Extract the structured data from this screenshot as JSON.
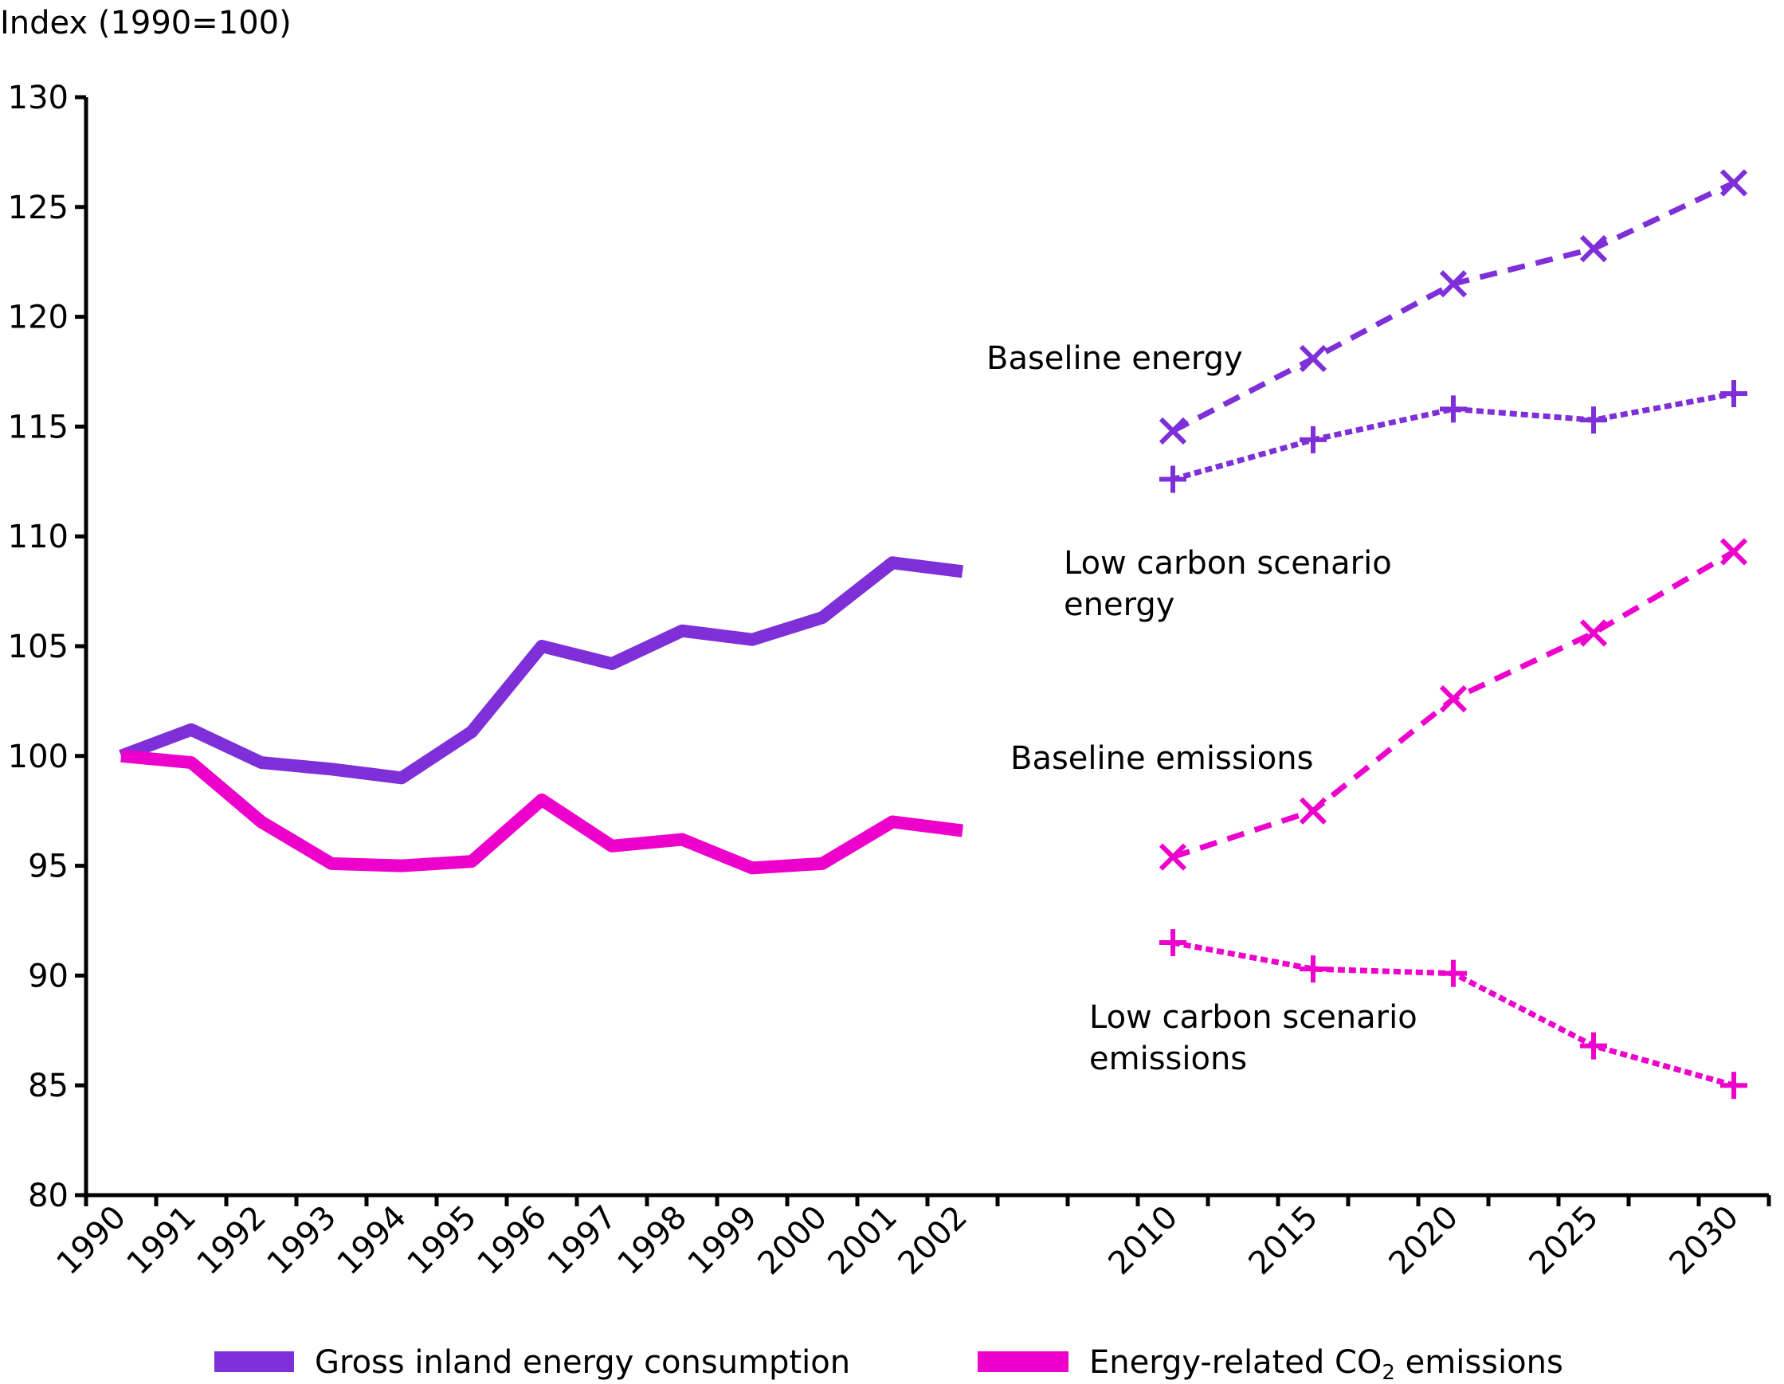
{
  "chart_data": {
    "type": "line",
    "title": "",
    "ylabel": "Index (1990=100)",
    "xlabel": "",
    "ylim": [
      80,
      130
    ],
    "yticks": [
      80,
      85,
      90,
      95,
      100,
      105,
      110,
      115,
      120,
      125,
      130
    ],
    "grid": false,
    "categories": [
      "1990",
      "1991",
      "1992",
      "1993",
      "1994",
      "1995",
      "1996",
      "1997",
      "1998",
      "1999",
      "2000",
      "2001",
      "2002",
      "",
      "",
      "2010",
      "",
      "2015",
      "",
      "2020",
      "",
      "2025",
      "",
      "2030"
    ],
    "series": [
      {
        "name": "Gross inland energy consumption",
        "color": "#7F2FD8",
        "style": "solid",
        "marker": "none",
        "x": [
          "1990",
          "1991",
          "1992",
          "1993",
          "1994",
          "1995",
          "1996",
          "1997",
          "1998",
          "1999",
          "2000",
          "2001",
          "2002"
        ],
        "values": [
          100.0,
          101.2,
          99.7,
          99.4,
          99.0,
          101.1,
          105.0,
          104.2,
          105.7,
          105.3,
          106.3,
          108.8,
          108.4
        ]
      },
      {
        "name": "Energy-related CO2 emissions",
        "color": "#EE00CC",
        "style": "solid",
        "marker": "none",
        "x": [
          "1990",
          "1991",
          "1992",
          "1993",
          "1994",
          "1995",
          "1996",
          "1997",
          "1998",
          "1999",
          "2000",
          "2001",
          "2002"
        ],
        "values": [
          100.0,
          99.7,
          97.0,
          95.1,
          95.0,
          95.2,
          98.0,
          95.9,
          96.2,
          94.9,
          95.1,
          97.0,
          96.6
        ]
      },
      {
        "name": "Baseline energy",
        "color": "#7F2FD8",
        "style": "dashed",
        "marker": "x",
        "x": [
          "2010",
          "2015",
          "2020",
          "2025",
          "2030"
        ],
        "values": [
          114.8,
          118.1,
          121.5,
          123.1,
          126.1
        ]
      },
      {
        "name": "Low carbon scenario energy",
        "color": "#7F2FD8",
        "style": "dotted",
        "marker": "+",
        "x": [
          "2010",
          "2015",
          "2020",
          "2025",
          "2030"
        ],
        "values": [
          112.6,
          114.4,
          115.8,
          115.3,
          116.5
        ]
      },
      {
        "name": "Baseline emissions",
        "color": "#EE00CC",
        "style": "dashed",
        "marker": "x",
        "x": [
          "2010",
          "2015",
          "2020",
          "2025",
          "2030"
        ],
        "values": [
          95.4,
          97.5,
          102.6,
          105.6,
          109.3
        ]
      },
      {
        "name": "Low carbon scenario emissions",
        "color": "#EE00CC",
        "style": "dotted",
        "marker": "+",
        "x": [
          "2010",
          "2015",
          "2020",
          "2025",
          "2030"
        ],
        "values": [
          91.5,
          90.3,
          90.1,
          86.8,
          85.0
        ]
      }
    ],
    "annotations": [
      {
        "id": "baseline-energy",
        "lines": [
          "Baseline energy"
        ]
      },
      {
        "id": "low-carbon-energy",
        "lines": [
          "Low carbon scenario",
          "energy"
        ]
      },
      {
        "id": "baseline-emissions",
        "lines": [
          "Baseline emissions"
        ]
      },
      {
        "id": "low-carbon-emissions",
        "lines": [
          "Low carbon scenario",
          "emissions"
        ]
      }
    ],
    "legend": {
      "placement": "bottom",
      "entries": [
        {
          "label": "Gross inland energy consumption",
          "color": "#7F2FD8"
        },
        {
          "label_main": "Energy-related CO",
          "label_sub": "2",
          "label_tail": " emissions",
          "color": "#EE00CC"
        }
      ]
    }
  }
}
